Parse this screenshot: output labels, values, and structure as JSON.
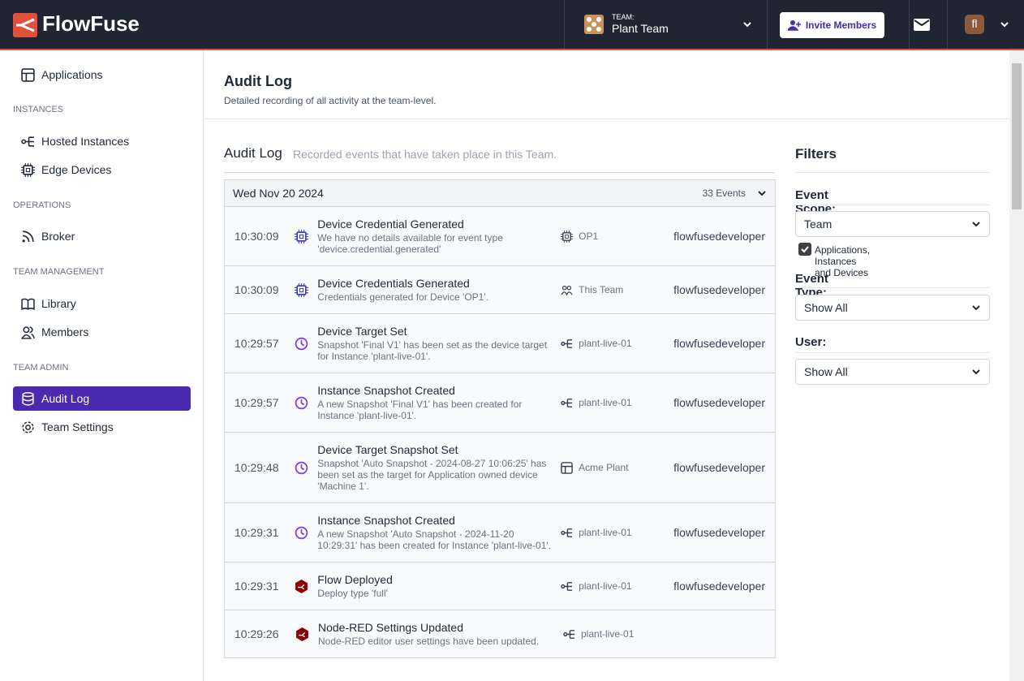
{
  "header": {
    "brand": "FlowFuse",
    "team_label": "TEAM:",
    "team_name": "Plant Team",
    "invite": "Invite Members",
    "avatar": "fl"
  },
  "sidebar": {
    "top": [
      "Applications"
    ],
    "sections": [
      {
        "heading": "INSTANCES",
        "items": [
          "Hosted Instances",
          "Edge Devices"
        ]
      },
      {
        "heading": "OPERATIONS",
        "items": [
          "Broker"
        ]
      },
      {
        "heading": "TEAM MANAGEMENT",
        "items": [
          "Library",
          "Members"
        ]
      },
      {
        "heading": "TEAM ADMIN",
        "items": [
          "Audit Log",
          "Team Settings"
        ]
      }
    ]
  },
  "page": {
    "title": "Audit Log",
    "subtitle": "Detailed recording of all activity at the team-level."
  },
  "log": {
    "title": "Audit Log",
    "subtitle": "Recorded events that have taken place in this Team.",
    "date": "Wed Nov 20 2024",
    "count": "33 Events",
    "entries": [
      {
        "time": "10:30:09",
        "title": "Device Credential Generated",
        "body": "We have no details available for event type 'device.credential.generated'",
        "scope": "OP1",
        "user": "flowfusedeveloper"
      },
      {
        "time": "10:30:09",
        "title": "Device Credentials Generated",
        "body": "Credentials generated for Device 'OP1'.",
        "scope": "This Team",
        "user": "flowfusedeveloper"
      },
      {
        "time": "10:29:57",
        "title": "Device Target Set",
        "body": "Snapshot 'Final V1' has been set as the device target for Instance 'plant-live-01'.",
        "scope": "plant-live-01",
        "user": "flowfusedeveloper"
      },
      {
        "time": "10:29:57",
        "title": "Instance Snapshot Created",
        "body": "A new Snapshot 'Final V1' has been created for Instance 'plant-live-01'.",
        "scope": "plant-live-01",
        "user": "flowfusedeveloper"
      },
      {
        "time": "10:29:48",
        "title": "Device Target Snapshot Set",
        "body": "Snapshot 'Auto Snapshot - 2024-08-27 10:06:25' has been set as the target for Application owned device 'Machine 1'.",
        "scope": "Acme Plant",
        "user": "flowfusedeveloper"
      },
      {
        "time": "10:29:31",
        "title": "Instance Snapshot Created",
        "body": "A new Snapshot 'Auto Snapshot - 2024-11-20 10:29:31' has been created for Instance 'plant-live-01'.",
        "scope": "plant-live-01",
        "user": "flowfusedeveloper"
      },
      {
        "time": "10:29:31",
        "title": "Flow Deployed",
        "body": "Deploy type 'full'",
        "scope": "plant-live-01",
        "user": "flowfusedeveloper"
      },
      {
        "time": "10:29:26",
        "title": "Node-RED Settings Updated",
        "body": "Node-RED editor user settings have been updated.",
        "scope": "plant-live-01"
      }
    ]
  },
  "filters": {
    "title": "Filters",
    "scope_label": "Event Scope:",
    "scope_value": "Team",
    "scope_checkbox": "Applications, Instances and Devices",
    "type_label": "Event Type:",
    "type_value": "Show All",
    "user_label": "User:",
    "user_value": "Show All"
  }
}
